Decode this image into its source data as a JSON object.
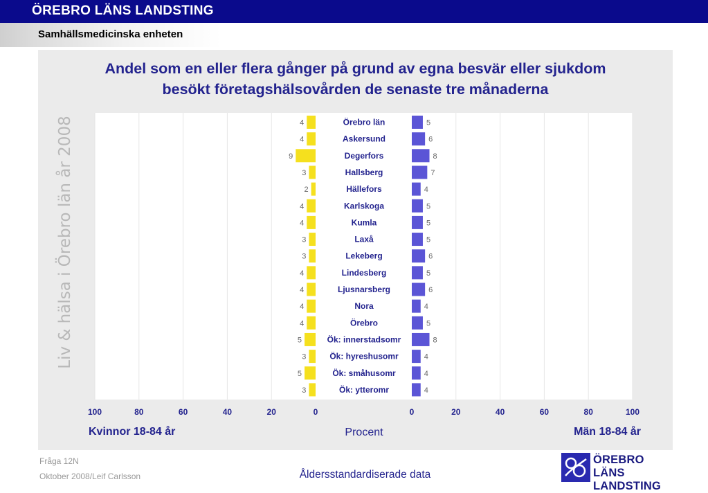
{
  "header": {
    "org_title": "ÖREBRO LÄNS LANDSTING",
    "unit_title": "Samhällsmedicinska enheten"
  },
  "watermark": "Liv & hälsa i Örebro län år 2008",
  "chart_data": {
    "type": "bar",
    "orientation": "horizontal-butterfly",
    "title": "Andel som en eller flera gånger på grund av egna besvär eller sjukdom besökt företagshälsovården de senaste tre månaderna",
    "title_lines": [
      "Andel som en eller flera gånger på grund av egna besvär eller sjukdom",
      "besökt företagshälsovården de senaste tre månaderna"
    ],
    "categories": [
      "Örebro län",
      "Askersund",
      "Degerfors",
      "Hallsberg",
      "Hällefors",
      "Karlskoga",
      "Kumla",
      "Laxå",
      "Lekeberg",
      "Lindesberg",
      "Ljusnarsberg",
      "Nora",
      "Örebro",
      "Ök: innerstadsomr",
      "Ök: hyreshusomr",
      "Ök: småhusomr",
      "Ök: ytteromr"
    ],
    "series": [
      {
        "name": "Kvinnor 18-84 år",
        "color": "#f5e01e",
        "values": [
          4,
          4,
          9,
          3,
          2,
          4,
          4,
          3,
          3,
          4,
          4,
          4,
          4,
          5,
          3,
          5,
          3
        ]
      },
      {
        "name": "Män 18-84 år",
        "color": "#5b55d6",
        "values": [
          5,
          6,
          8,
          7,
          4,
          5,
          5,
          5,
          6,
          5,
          6,
          4,
          5,
          8,
          4,
          4,
          4
        ]
      }
    ],
    "left_axis_ticks": [
      "100",
      "80",
      "60",
      "40",
      "20",
      "0"
    ],
    "right_axis_ticks": [
      "0",
      "20",
      "40",
      "60",
      "80",
      "100"
    ],
    "xlim": [
      0,
      100
    ],
    "xlabel": "Procent",
    "grid": true
  },
  "footer": {
    "question": "Fråga 12N",
    "date_author": "Oktober 2008/Leif Carlsson",
    "note": "Åldersstandardiserade data",
    "logo_line1": "ÖREBRO LÄNS",
    "logo_line2": "LANDSTING"
  },
  "colors": {
    "header_bg": "#0a0a8c",
    "title_color": "#23238e",
    "panel_bg": "#ebebeb",
    "women_bar": "#f5e01e",
    "men_bar": "#5b55d6"
  }
}
